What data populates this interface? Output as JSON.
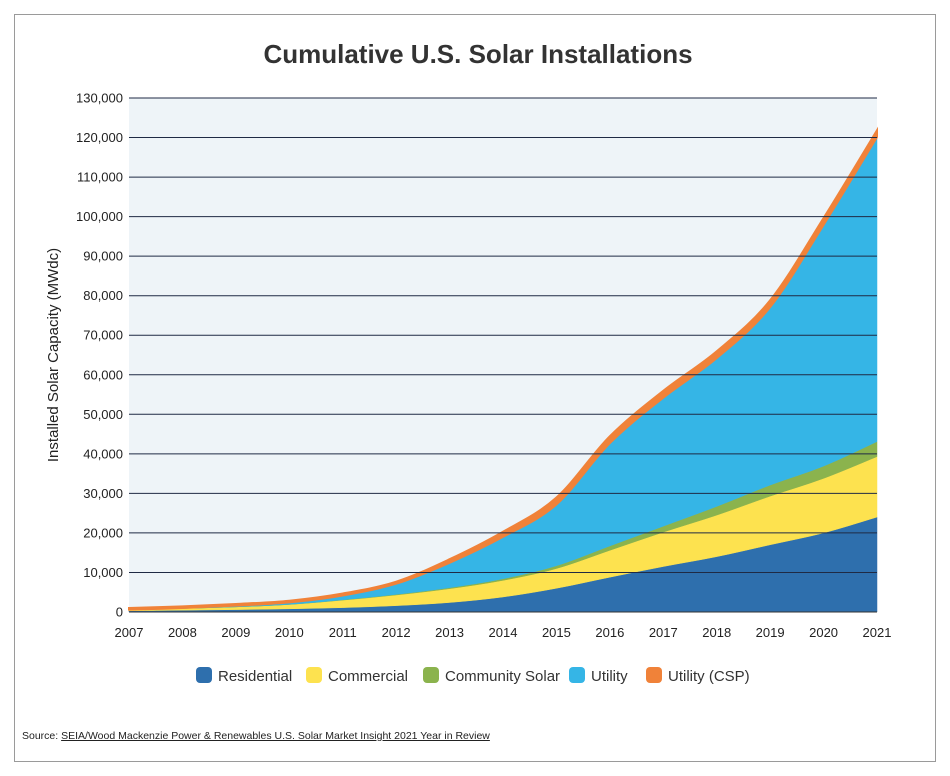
{
  "chart_data": {
    "type": "area",
    "stacked": true,
    "title": "Cumulative U.S. Solar Installations",
    "xlabel": "",
    "ylabel": "Installed Solar Capacity (MWdc)",
    "ylim": [
      0,
      130000
    ],
    "yticks": [
      0,
      10000,
      20000,
      30000,
      40000,
      50000,
      60000,
      70000,
      80000,
      90000,
      100000,
      110000,
      120000,
      130000
    ],
    "ytick_labels": [
      "0",
      "10,000",
      "20,000",
      "30,000",
      "40,000",
      "50,000",
      "60,000",
      "70,000",
      "80,000",
      "90,000",
      "100,000",
      "110,000",
      "120,000",
      "130,000"
    ],
    "x": [
      "2007",
      "2008",
      "2009",
      "2010",
      "2011",
      "2012",
      "2013",
      "2014",
      "2015",
      "2016",
      "2017",
      "2018",
      "2019",
      "2020",
      "2021"
    ],
    "grid": "horizontal",
    "legend_position": "bottom",
    "series": [
      {
        "name": "Residential",
        "color": "#2e6fad",
        "values": [
          300,
          450,
          600,
          800,
          1100,
          1600,
          2400,
          3800,
          6000,
          8800,
          11500,
          14000,
          17000,
          20000,
          24000
        ]
      },
      {
        "name": "Commercial",
        "color": "#fde24f",
        "values": [
          300,
          450,
          700,
          1100,
          1900,
          2700,
          3500,
          4200,
          5000,
          6800,
          8700,
          10500,
          12300,
          13800,
          15300
        ]
      },
      {
        "name": "Community Solar",
        "color": "#8bb34d",
        "values": [
          0,
          0,
          0,
          30,
          80,
          150,
          250,
          400,
          700,
          1100,
          1500,
          2200,
          2800,
          3100,
          3800
        ]
      },
      {
        "name": "Utility",
        "color": "#35b5e6",
        "values": [
          0,
          100,
          300,
          500,
          1100,
          2700,
          6300,
          10600,
          15500,
          26000,
          32500,
          37500,
          45000,
          61000,
          77000
        ]
      },
      {
        "name": "Utility (CSP)",
        "color": "#f08239",
        "values": [
          420,
          420,
          420,
          430,
          500,
          520,
          900,
          1300,
          1750,
          1750,
          1750,
          1750,
          1750,
          1750,
          1750
        ]
      }
    ]
  },
  "source": {
    "prefix": "Source: ",
    "text": "SEIA/Wood Mackenzie Power & Renewables U.S. Solar Market Insight 2021 Year in Review"
  }
}
